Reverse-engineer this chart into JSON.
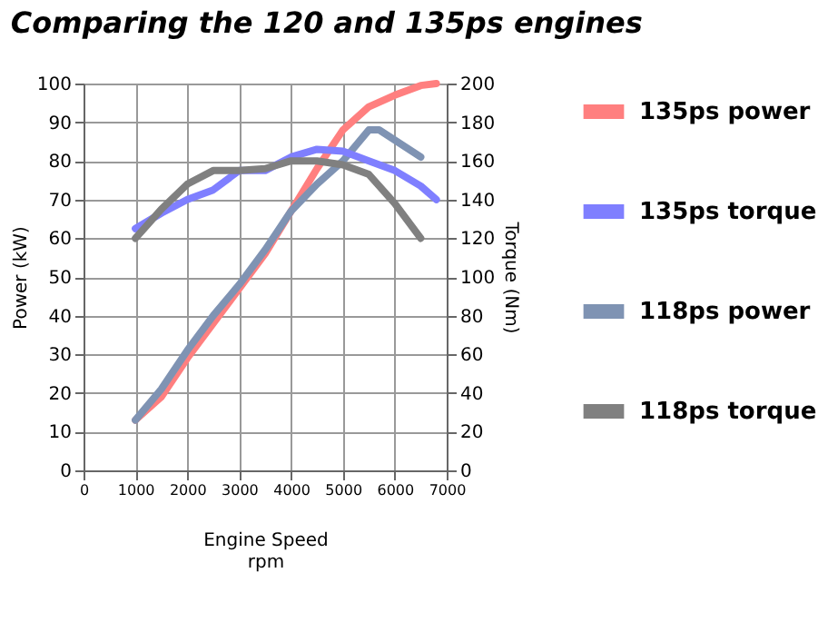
{
  "chart_data": {
    "type": "line",
    "title": "Comparing the 120 and 135ps engines",
    "xlabel": "Engine Speed\nrpm",
    "ylabel": "Power (kW)",
    "y2label": "Torque (Nm)",
    "xlim": [
      0,
      7000
    ],
    "xticks": [
      0,
      1000,
      2000,
      3000,
      4000,
      5000,
      6000,
      7000
    ],
    "ylim": [
      0,
      100
    ],
    "yticks": [
      0,
      10,
      20,
      30,
      40,
      50,
      60,
      70,
      80,
      90,
      100
    ],
    "y2lim": [
      0,
      200
    ],
    "y2ticks": [
      0,
      20,
      40,
      60,
      80,
      100,
      120,
      140,
      160,
      180,
      200
    ],
    "grid": true,
    "legend": "right",
    "marker": "none",
    "line_style": "solid",
    "series": [
      {
        "name": "135ps power",
        "color": "#ff7f7f",
        "x": [
          1000,
          1500,
          2000,
          2500,
          3000,
          3500,
          4000,
          4500,
          5000,
          5500,
          6000,
          6500,
          6800
        ],
        "values": [
          13,
          19,
          29,
          38,
          47,
          56,
          67,
          78,
          88,
          94,
          97,
          99.5,
          100
        ]
      },
      {
        "name": "135ps torque",
        "color": "#7f7fff",
        "axis": "y2",
        "x": [
          1000,
          1500,
          2000,
          2500,
          3000,
          3500,
          4000,
          4500,
          5000,
          5500,
          6000,
          6500,
          6800
        ],
        "values": [
          125,
          133,
          140,
          145,
          155,
          155,
          162,
          166,
          165,
          160,
          155,
          147,
          140
        ]
      },
      {
        "name": "118ps power",
        "color": "#7f93b3",
        "x": [
          1000,
          1500,
          2000,
          2500,
          3000,
          3500,
          4000,
          4500,
          5000,
          5500,
          5700,
          6500
        ],
        "values": [
          13,
          21,
          31,
          40,
          48,
          57,
          67,
          74,
          80,
          88,
          88,
          81
        ]
      },
      {
        "name": "118ps torque",
        "color": "#808080",
        "axis": "y2",
        "x": [
          1000,
          1500,
          2000,
          2500,
          3000,
          3500,
          4000,
          4500,
          5000,
          5500,
          6000,
          6500
        ],
        "values": [
          120,
          135,
          148,
          155,
          155,
          156,
          160,
          160,
          158,
          153,
          138,
          120
        ]
      }
    ]
  }
}
